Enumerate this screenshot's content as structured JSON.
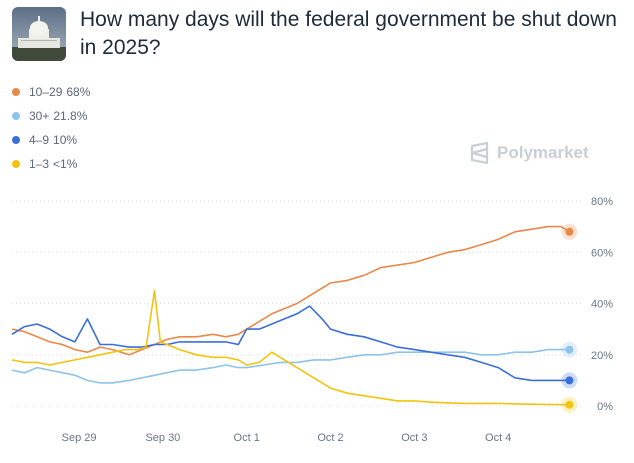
{
  "header": {
    "title": "How many days will the federal government be shut down in 2025?",
    "thumbnail_icon": "capitol-building-icon"
  },
  "brand": {
    "name": "Polymarket",
    "icon": "polymarket-logo-icon"
  },
  "legend": [
    {
      "label": "10–29",
      "value": "68%",
      "color": "#e8894a"
    },
    {
      "label": "30+",
      "value": "21.8%",
      "color": "#8ec3ea"
    },
    {
      "label": "4–9",
      "value": "10%",
      "color": "#3b6fd8"
    },
    {
      "label": "1–3",
      "value": "<1%",
      "color": "#f2c40f"
    }
  ],
  "chart_data": {
    "type": "line",
    "x_tick_labels": [
      "Sep 29",
      "Sep 30",
      "Oct 1",
      "Oct 2",
      "Oct 3",
      "Oct 4"
    ],
    "x_ticks": [
      1.0,
      2.0,
      3.0,
      4.0,
      5.0,
      6.0
    ],
    "xlim": [
      0.2,
      7.0
    ],
    "ylim": [
      0,
      80
    ],
    "y_ticks": [
      0,
      20,
      40,
      60,
      80
    ],
    "y_tick_labels": [
      "0%",
      "20%",
      "40%",
      "60%",
      "80%"
    ],
    "grid": "horizontal-dotted",
    "legend_placement": "top-left",
    "series": [
      {
        "name": "10–29",
        "color": "#e8894a",
        "x": [
          0.2,
          0.35,
          0.5,
          0.65,
          0.8,
          0.95,
          1.1,
          1.25,
          1.4,
          1.6,
          1.75,
          1.9,
          2.05,
          2.2,
          2.4,
          2.6,
          2.75,
          2.9,
          3.0,
          3.1,
          3.3,
          3.45,
          3.6,
          3.75,
          3.9,
          4.0,
          4.2,
          4.4,
          4.6,
          4.8,
          5.0,
          5.2,
          5.4,
          5.6,
          5.8,
          6.0,
          6.2,
          6.4,
          6.6,
          6.75,
          6.85
        ],
        "values": [
          30,
          29,
          27,
          25,
          24,
          22,
          21,
          23,
          22,
          20,
          22,
          24,
          26,
          27,
          27,
          28,
          27,
          28,
          30,
          32,
          36,
          38,
          40,
          43,
          46,
          48,
          49,
          51,
          54,
          55,
          56,
          58,
          60,
          61,
          63,
          65,
          68,
          69,
          70,
          70,
          68
        ]
      },
      {
        "name": "30+",
        "color": "#8ec3ea",
        "x": [
          0.2,
          0.35,
          0.5,
          0.65,
          0.8,
          0.95,
          1.1,
          1.25,
          1.4,
          1.6,
          1.75,
          1.9,
          2.05,
          2.2,
          2.4,
          2.6,
          2.75,
          2.9,
          3.0,
          3.2,
          3.4,
          3.6,
          3.8,
          4.0,
          4.2,
          4.4,
          4.6,
          4.8,
          5.0,
          5.2,
          5.4,
          5.6,
          5.8,
          6.0,
          6.2,
          6.4,
          6.6,
          6.85
        ],
        "values": [
          14,
          13,
          15,
          14,
          13,
          12,
          10,
          9,
          9,
          10,
          11,
          12,
          13,
          14,
          14,
          15,
          16,
          15,
          15,
          16,
          17,
          17,
          18,
          18,
          19,
          20,
          20,
          21,
          21,
          21,
          21,
          21,
          20,
          20,
          21,
          21,
          22,
          22
        ]
      },
      {
        "name": "4–9",
        "color": "#3b6fd8",
        "x": [
          0.2,
          0.35,
          0.5,
          0.65,
          0.8,
          0.95,
          1.1,
          1.25,
          1.4,
          1.6,
          1.75,
          1.9,
          2.05,
          2.2,
          2.4,
          2.6,
          2.75,
          2.9,
          3.0,
          3.15,
          3.3,
          3.45,
          3.6,
          3.75,
          3.9,
          4.0,
          4.2,
          4.4,
          4.6,
          4.8,
          5.0,
          5.2,
          5.4,
          5.6,
          5.8,
          6.0,
          6.2,
          6.4,
          6.6,
          6.85
        ],
        "values": [
          28,
          31,
          32,
          30,
          27,
          25,
          34,
          24,
          24,
          23,
          23,
          24,
          24,
          25,
          25,
          25,
          25,
          24,
          30,
          30,
          32,
          34,
          36,
          39,
          34,
          30,
          28,
          27,
          25,
          23,
          22,
          21,
          20,
          19,
          17,
          15,
          11,
          10,
          10,
          10
        ]
      },
      {
        "name": "1–3",
        "color": "#f2c40f",
        "x": [
          0.2,
          0.35,
          0.5,
          0.65,
          0.8,
          0.95,
          1.1,
          1.25,
          1.4,
          1.55,
          1.7,
          1.8,
          1.9,
          1.97,
          2.05,
          2.2,
          2.4,
          2.6,
          2.75,
          2.9,
          3.0,
          3.15,
          3.3,
          3.45,
          3.6,
          3.75,
          3.9,
          4.0,
          4.2,
          4.4,
          4.6,
          4.8,
          5.0,
          5.2,
          5.4,
          5.6,
          5.8,
          6.0,
          6.2,
          6.4,
          6.6,
          6.85
        ],
        "values": [
          18,
          17,
          17,
          16,
          17,
          18,
          19,
          20,
          21,
          22,
          22,
          23,
          45,
          25,
          24,
          22,
          20,
          19,
          19,
          18,
          16,
          17,
          21,
          18,
          15,
          12,
          9,
          7,
          5,
          4,
          3,
          2,
          2,
          1.5,
          1.2,
          1,
          1,
          1,
          0.8,
          0.7,
          0.6,
          0.5
        ]
      }
    ]
  }
}
